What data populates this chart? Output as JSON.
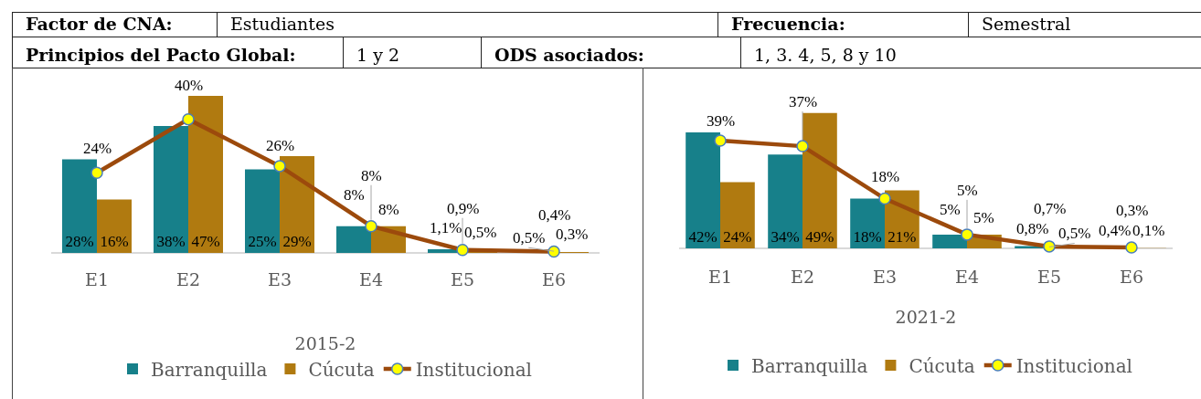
{
  "chart_data": [
    {
      "type": "other",
      "annotations": [
        "Factor de CNA:",
        "Estudiantes",
        "Frecuencia:",
        "Semestral",
        "Principios del Pacto Global:",
        "1 y 2",
        "ODS asociados:",
        "1, 3. 4, 5, 8 y 10"
      ]
    },
    {
      "type": "bar",
      "xlabel": "2015-2",
      "categories": [
        "E1",
        "E2",
        "E3",
        "E4",
        "E5",
        "E6"
      ],
      "legend": "bottom",
      "annotations": [
        {
          "text": "0,5%",
          "x": "E6",
          "y": 0.5
        }
      ],
      "series": [
        {
          "name": "Barranquilla",
          "color": "#17808a",
          "values": [
            28,
            38,
            25,
            8,
            1.1,
            null
          ],
          "value_labels": [
            "28%",
            "38%",
            "25%",
            "8%",
            "1,1%",
            null
          ]
        },
        {
          "name": "Cúcuta",
          "color": "#b07a10",
          "values": [
            16,
            47,
            29,
            8,
            0.5,
            0.3
          ],
          "value_labels": [
            "16%",
            "47%",
            "29%",
            "8%",
            "0,5%",
            "0,3%"
          ]
        },
        {
          "name": "Institucional",
          "type": "line",
          "color": "#9c4a0c",
          "colors": [
            "#ffff00",
            "#ffff00",
            "#ffff00",
            "#ffff00",
            "#ffff00",
            "#ffff00"
          ],
          "marker": "circle",
          "line_style": "solid",
          "values": [
            24,
            40,
            26,
            8,
            0.9,
            0.4
          ],
          "value_labels": [
            "24%",
            "40%",
            "26%",
            "8%",
            "0,9%",
            "0,4%"
          ]
        }
      ]
    },
    {
      "type": "bar",
      "xlabel": "2021-2",
      "categories": [
        "E1",
        "E2",
        "E3",
        "E4",
        "E5",
        "E6"
      ],
      "legend": "bottom",
      "annotations": [
        {
          "text": "0,5%",
          "x": "E5",
          "y": 0.5
        }
      ],
      "series": [
        {
          "name": "Barranquilla",
          "color": "#17808a",
          "values": [
            42,
            34,
            18,
            5,
            0.8,
            0.4
          ],
          "value_labels": [
            "42%",
            "34%",
            "18%",
            "5%",
            "0,8%",
            "0,4%"
          ]
        },
        {
          "name": "Cúcuta",
          "color": "#b07a10",
          "values": [
            24,
            49,
            21,
            5,
            null,
            0.1
          ],
          "value_labels": [
            "24%",
            "49%",
            "21%",
            "5%",
            null,
            "0,1%"
          ]
        },
        {
          "name": "Institucional",
          "type": "line",
          "color": "#9c4a0c",
          "colors": [
            "#ffff00",
            "#ffff00",
            "#ffff00",
            "#ffff00",
            "#ffff00",
            "#ffff00"
          ],
          "marker": "circle",
          "line_style": "solid",
          "values": [
            39,
            37,
            18,
            5,
            0.7,
            0.3
          ],
          "value_labels": [
            "39%",
            "37%",
            "18%",
            "5%",
            "0,7%",
            "0,3%"
          ]
        }
      ]
    }
  ]
}
